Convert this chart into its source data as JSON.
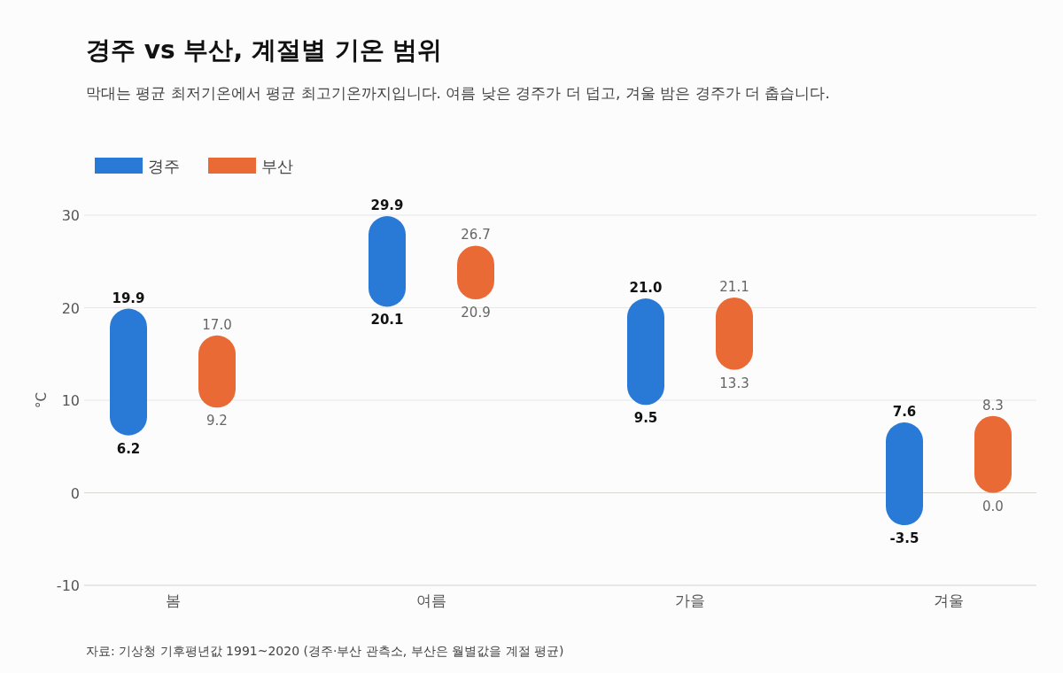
{
  "chart_data": {
    "type": "bar",
    "title": "경주 vs 부산, 계절별 기온 범위",
    "subtitle": "막대는 평균 최저기온에서 평균 최고기온까지입니다. 여름 낮은 경주가 더 덥고, 겨울 밤은 경주가 더 춥습니다.",
    "ylabel": "°C",
    "categories": [
      "봄",
      "여름",
      "가을",
      "겨울"
    ],
    "series": [
      {
        "name": "경주",
        "color": "#2979d6",
        "base": [
          6.2,
          20.1,
          9.5,
          -3.5
        ],
        "values": [
          13.7,
          9.8,
          11.5,
          11.1
        ]
      },
      {
        "name": "부산",
        "color": "#ea6a35",
        "base": [
          9.2,
          20.9,
          13.3,
          0.0
        ],
        "values": [
          7.8,
          5.8,
          7.8,
          8.3
        ]
      }
    ],
    "ylim": [
      -10,
      30
    ],
    "yticks": [
      -10,
      0,
      10,
      20,
      30
    ],
    "grid": "y",
    "legend": "top left",
    "annotations": [
      "19.9",
      "6.2",
      "17.0",
      "9.2",
      "29.9",
      "20.1",
      "26.7",
      "20.9",
      "21.0",
      "9.5",
      "21.1",
      "13.3",
      "7.6",
      "-3.5",
      "8.3",
      "0.0",
      "자료: 기상청 기후평년값 1991~2020 (경주·부산 관측소, 부산은 월별값을 계절 평균)"
    ]
  }
}
